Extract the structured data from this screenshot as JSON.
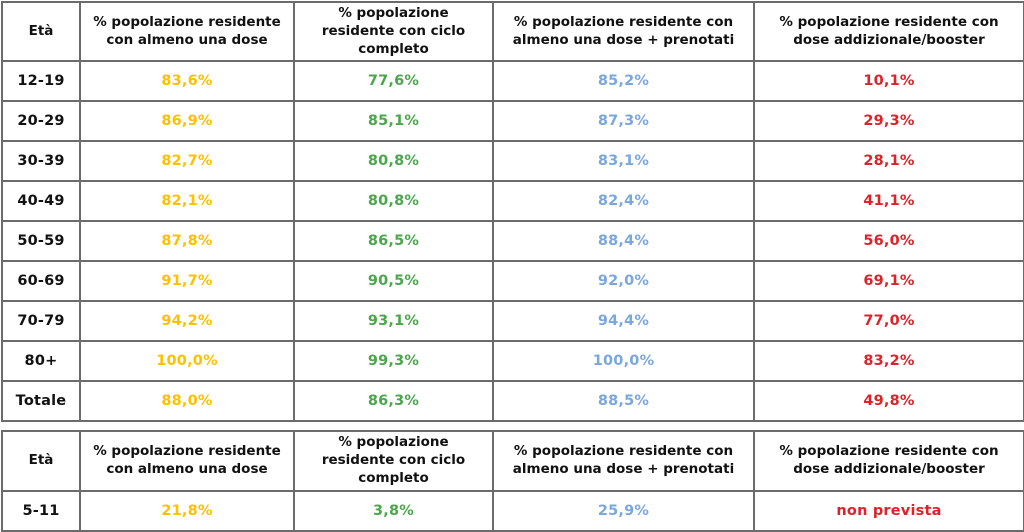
{
  "styles": {
    "value_colors": [
      "#111111",
      "#FFC000",
      "#4CA64C",
      "#7AA7DC",
      "#E02128"
    ],
    "header_text_color": "#111111",
    "inner_border_color": "#6b6b6b",
    "outer_border_color": "#2f2f2f",
    "background": "#ffffff"
  },
  "chart_data": [
    {
      "type": "table",
      "columns": [
        "Età",
        "% popolazione residente\ncon almeno una dose",
        "% popolazione\nresidente con ciclo\ncompleto",
        "% popolazione residente con\nalmeno una dose + prenotati",
        "% popolazione residente con\ndose addizionale/booster"
      ],
      "rows": [
        [
          "12-19",
          "83,6%",
          "77,6%",
          "85,2%",
          "10,1%"
        ],
        [
          "20-29",
          "86,9%",
          "85,1%",
          "87,3%",
          "29,3%"
        ],
        [
          "30-39",
          "82,7%",
          "80,8%",
          "83,1%",
          "28,1%"
        ],
        [
          "40-49",
          "82,1%",
          "80,8%",
          "82,4%",
          "41,1%"
        ],
        [
          "50-59",
          "87,8%",
          "86,5%",
          "88,4%",
          "56,0%"
        ],
        [
          "60-69",
          "91,7%",
          "90,5%",
          "92,0%",
          "69,1%"
        ],
        [
          "70-79",
          "94,2%",
          "93,1%",
          "94,4%",
          "77,0%"
        ],
        [
          "80+",
          "100,0%",
          "99,3%",
          "100,0%",
          "83,2%"
        ],
        [
          "Totale",
          "88,0%",
          "86,3%",
          "88,5%",
          "49,8%"
        ]
      ]
    },
    {
      "type": "table",
      "columns": [
        "Età",
        "% popolazione residente\ncon almeno una dose",
        "% popolazione\nresidente con ciclo\ncompleto",
        "% popolazione residente con\nalmeno una dose + prenotati",
        "% popolazione residente con\ndose addizionale/booster"
      ],
      "rows": [
        [
          "5-11",
          "21,8%",
          "3,8%",
          "25,9%",
          "non prevista"
        ]
      ]
    }
  ]
}
